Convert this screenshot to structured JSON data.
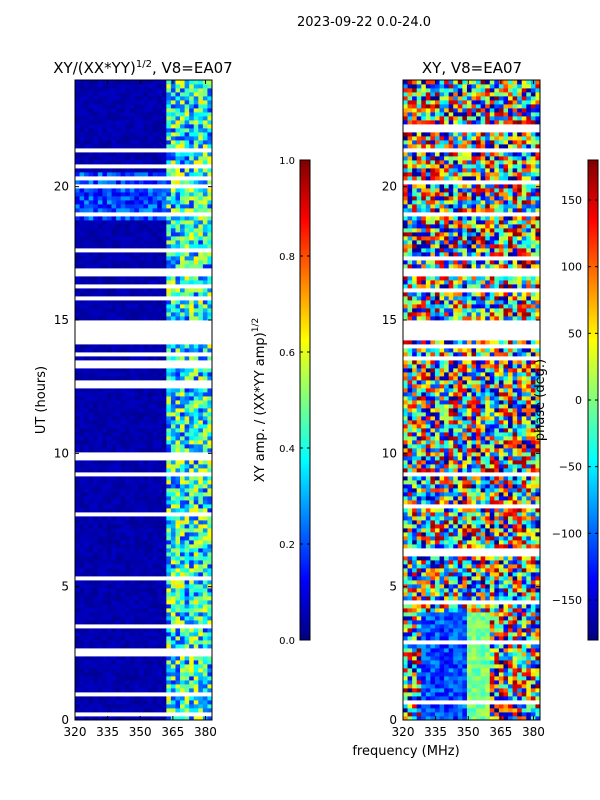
{
  "figure": {
    "suptitle": "2023-09-22 0.0-24.0",
    "shared_xlabel": "frequency (MHz)"
  },
  "colors": {
    "jet": [
      "#00007f",
      "#0000ff",
      "#007fff",
      "#00ffff",
      "#7fff7f",
      "#ffff00",
      "#ff7f00",
      "#ff0000",
      "#7f0000"
    ],
    "gap": "#ffffff",
    "axis": "#000000"
  },
  "chart_data": [
    {
      "type": "heatmap",
      "title_parts": {
        "prefix": "XY/(XX*YY)",
        "exponent": "1/2",
        "suffix": ", V8=EA07"
      },
      "xlabel": "",
      "ylabel": "UT (hours)",
      "xlim": [
        320,
        383
      ],
      "ylim": [
        0,
        24
      ],
      "xticks": [
        320,
        335,
        350,
        365,
        380
      ],
      "yticks": [
        0,
        5,
        10,
        15,
        20
      ],
      "colorbar": {
        "label_prefix": "XY amp. / (XX*YY amp)",
        "label_exponent": "1/2",
        "range": [
          0.0,
          1.0
        ],
        "ticks": [
          "0.0",
          "0.2",
          "0.4",
          "0.6",
          "0.8",
          "1.0"
        ]
      },
      "blank_bands": [
        [
          14.3,
          15.0
        ],
        [
          16.7,
          17.0
        ]
      ],
      "bright_channel_band": [
        361,
        383
      ]
    },
    {
      "type": "heatmap",
      "title": "XY, V8=EA07",
      "xlabel": "frequency (MHz)",
      "ylabel": "",
      "xlim": [
        320,
        383
      ],
      "ylim": [
        0,
        24
      ],
      "xticks": [
        320,
        335,
        350,
        365,
        380
      ],
      "yticks": [
        0,
        5,
        10,
        15,
        20
      ],
      "colorbar": {
        "label": "phase (deg.)",
        "range": [
          -180,
          180
        ],
        "ticks": [
          "−150",
          "−100",
          "−50",
          "0",
          "50",
          "100",
          "150"
        ],
        "tick_values": [
          -150,
          -100,
          -50,
          0,
          50,
          100,
          150
        ]
      },
      "blank_bands": [
        [
          14.3,
          15.0
        ],
        [
          16.7,
          17.0
        ]
      ]
    }
  ]
}
